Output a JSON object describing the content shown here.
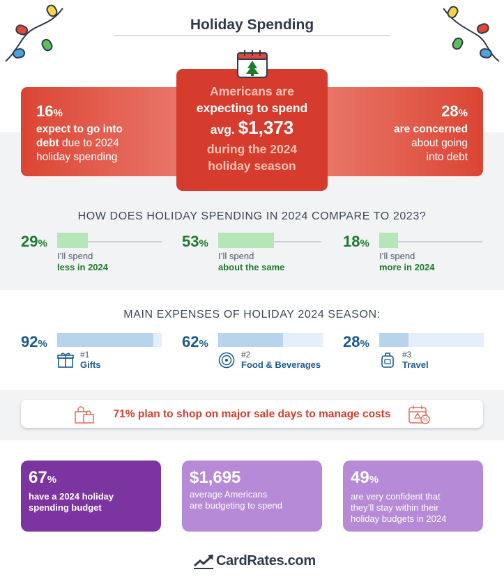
{
  "header": {
    "title": "Holiday Spending"
  },
  "hero": {
    "left": {
      "pct": "16",
      "pct_sign": "%",
      "line1_bold": "expect to go into",
      "line2_bold": "debt",
      "line2_rest": " due to 2024",
      "line3": "holiday spending"
    },
    "center": {
      "line1": "Americans are",
      "line2": "expecting to spend",
      "line3_prefix": "avg. ",
      "line3_value": "$1,373",
      "line4": "during the 2024",
      "line5": "holiday season"
    },
    "right": {
      "pct": "28",
      "pct_sign": "%",
      "line1_bold": "are concerned",
      "line2": "about going",
      "line3": "into debt"
    }
  },
  "compare": {
    "heading": "HOW DOES HOLIDAY SPENDING IN 2024 COMPARE TO 2023?",
    "items": [
      {
        "value": 29,
        "pct": "29",
        "sign": "%",
        "label1": "I’ll spend",
        "label2": "less in 2024"
      },
      {
        "value": 53,
        "pct": "53",
        "sign": "%",
        "label1": "I’ll spend",
        "label2": "about the same"
      },
      {
        "value": 18,
        "pct": "18",
        "sign": "%",
        "label1": "I’ll spend",
        "label2": "more in 2024"
      }
    ]
  },
  "expenses": {
    "heading": "MAIN EXPENSES OF HOLIDAY 2024 SEASON:",
    "items": [
      {
        "value": 92,
        "pct": "92",
        "sign": "%",
        "rank": "#1",
        "name": "Gifts",
        "icon": "gift-icon"
      },
      {
        "value": 62,
        "pct": "62",
        "sign": "%",
        "rank": "#2",
        "name": "Food & Beverages",
        "icon": "plate-icon"
      },
      {
        "value": 28,
        "pct": "28",
        "sign": "%",
        "rank": "#3",
        "name": "Travel",
        "icon": "luggage-icon"
      }
    ]
  },
  "banner": {
    "text": "71% plan to shop on major sale days to manage costs"
  },
  "budget": {
    "items": [
      {
        "value": "67",
        "sign": "%",
        "line1": "have a 2024 holiday",
        "line2": "spending budget",
        "line3": ""
      },
      {
        "value": "$1,695",
        "sign": "",
        "line1": "average Americans",
        "line2": "are budgeting to spend",
        "line3": ""
      },
      {
        "value": "49",
        "sign": "%",
        "line1": "are very confident that",
        "line2": "they’ll stay within their",
        "line3": "holiday budgets in 2024"
      }
    ]
  },
  "footer": {
    "brand": "CardRates.com"
  },
  "colors": {
    "red": "#d63c2d",
    "green": "#1e7a2c",
    "blue": "#1a5a8f",
    "purple": "#7b34a0",
    "lavender": "#b68ad6"
  }
}
